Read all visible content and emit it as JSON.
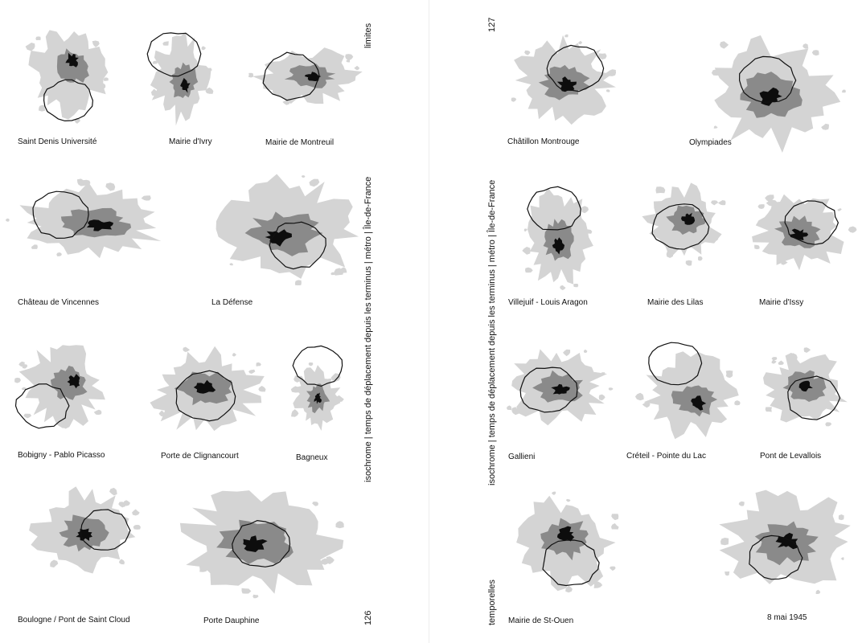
{
  "left_page": {
    "section_label": "limites",
    "spine_title": "isochrome | temps de déplacement depuis les terminus | métro | Île-de-France",
    "page_number": "126",
    "captions": [
      "Saint Denis Université",
      "Mairie d'Ivry",
      "Mairie de Montreuil",
      "Château de Vincennes",
      "La Défense",
      "Bobigny - Pablo Picasso",
      "Porte de Clignancourt",
      "Bagneux",
      "Boulogne  / Pont de Saint Cloud",
      "Porte Dauphine"
    ]
  },
  "right_page": {
    "page_number": "127",
    "spine_title": "isochrome | temps de déplacement depuis les terminus | métro | Île-de-France",
    "section_label": "temporelles",
    "captions": [
      "Châtillon Montrouge",
      "Olympiades",
      "Villejuif - Louis Aragon",
      "Mairie des Lilas",
      "Mairie d'Issy",
      "Gallieni",
      "Créteil - Pointe du Lac",
      "Pont de Levallois",
      "Mairie de St-Ouen",
      "8 mai 1945"
    ]
  },
  "colors": {
    "outer_zone": "#d4d4d4",
    "middle_zone": "#8a8a8a",
    "inner_zone": "#0d0d0d",
    "paris_outline": "#111111"
  }
}
